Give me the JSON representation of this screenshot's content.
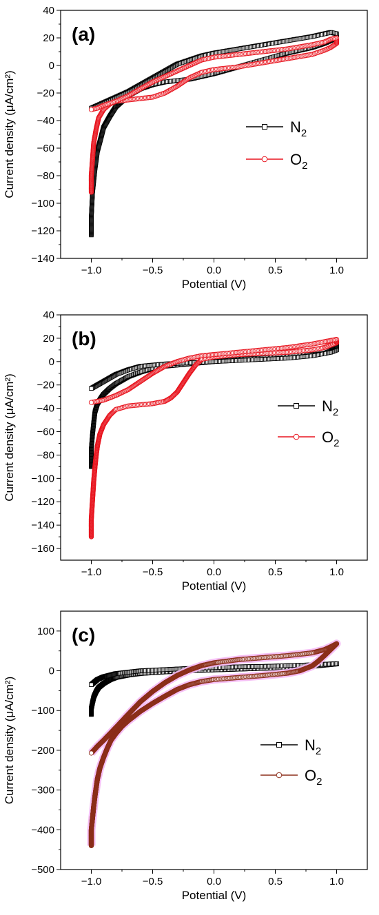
{
  "colors": {
    "n2": "#000000",
    "o2": "#e8141e",
    "o2_c": "#8b2e1a",
    "o2_c_halo": "#f4b8f4"
  },
  "chart_data": [
    {
      "type": "line",
      "panel_label": "(a)",
      "xlabel": "Potential (V)",
      "ylabel": "Current density (μA/cm²)",
      "xlim": [
        -1.25,
        1.25
      ],
      "ylim": [
        -140,
        40
      ],
      "xticks": [
        -1.0,
        -0.5,
        0.0,
        0.5,
        1.0
      ],
      "xtick_labels": [
        "−1.0",
        "−0.5",
        "0.0",
        "0.5",
        "1.0"
      ],
      "yticks": [
        -140,
        -120,
        -100,
        -80,
        -60,
        -40,
        -20,
        0,
        20,
        40
      ],
      "ytick_labels": [
        "−140",
        "−120",
        "−100",
        "−80",
        "−60",
        "−40",
        "−20",
        "0",
        "20",
        "40"
      ],
      "legend_position": "right-middle",
      "series": [
        {
          "name": "N",
          "name_sub": "2",
          "marker": "square",
          "color": "n2",
          "x": [
            -1.0,
            -1.0,
            -0.99,
            -0.97,
            -0.95,
            -0.92,
            -0.9,
            -0.85,
            -0.8,
            -0.7,
            -0.6,
            -0.5,
            -0.4,
            -0.3,
            -0.2,
            -0.1,
            0.0,
            0.2,
            0.4,
            0.6,
            0.8,
            0.9,
            0.95,
            1.0,
            1.0,
            0.95,
            0.9,
            0.8,
            0.6,
            0.4,
            0.2,
            0.0,
            -0.1,
            -0.2,
            -0.3,
            -0.4,
            -0.5,
            -0.6,
            -0.7,
            -0.8,
            -0.9,
            -0.95,
            -1.0
          ],
          "y": [
            -123,
            -110,
            -92,
            -75,
            -62,
            -52,
            -45,
            -37,
            -30,
            -22,
            -17,
            -14,
            -12,
            -11,
            -10,
            -8,
            -6,
            -1,
            4,
            9,
            13,
            16,
            18,
            20,
            23,
            24,
            23,
            21,
            18,
            15,
            12,
            9,
            7,
            4,
            1,
            -4,
            -9,
            -14,
            -19,
            -23,
            -27,
            -29,
            -31
          ]
        },
        {
          "name": "O",
          "name_sub": "2",
          "marker": "circle",
          "color": "o2",
          "x": [
            -1.0,
            -1.0,
            -0.99,
            -0.98,
            -0.96,
            -0.94,
            -0.9,
            -0.85,
            -0.8,
            -0.7,
            -0.6,
            -0.5,
            -0.4,
            -0.3,
            -0.2,
            -0.1,
            0.0,
            0.2,
            0.4,
            0.6,
            0.8,
            0.9,
            0.95,
            1.0,
            1.0,
            0.95,
            0.9,
            0.8,
            0.6,
            0.4,
            0.2,
            0.0,
            -0.1,
            -0.2,
            -0.3,
            -0.4,
            -0.5,
            -0.6,
            -0.7,
            -0.8,
            -0.9,
            -0.95,
            -1.0
          ],
          "y": [
            -92,
            -80,
            -68,
            -56,
            -46,
            -38,
            -32,
            -28,
            -26,
            -25,
            -24,
            -23,
            -20,
            -15,
            -9,
            -5,
            -3,
            -1,
            2,
            5,
            8,
            11,
            13,
            16,
            20,
            19,
            17,
            15,
            12,
            10,
            8,
            6,
            4,
            0,
            -4,
            -8,
            -12,
            -17,
            -22,
            -26,
            -29,
            -31,
            -32
          ]
        }
      ]
    },
    {
      "type": "line",
      "panel_label": "(b)",
      "xlabel": "Potential (V)",
      "ylabel": "Current density (μA/cm²)",
      "xlim": [
        -1.25,
        1.25
      ],
      "ylim": [
        -170,
        40
      ],
      "xticks": [
        -1.0,
        -0.5,
        0.0,
        0.5,
        1.0
      ],
      "xtick_labels": [
        "−1.0",
        "−0.5",
        "0.0",
        "0.5",
        "1.0"
      ],
      "yticks": [
        -160,
        -140,
        -120,
        -100,
        -80,
        -60,
        -40,
        -20,
        0,
        20,
        40
      ],
      "ytick_labels": [
        "−160",
        "−140",
        "−120",
        "−100",
        "−80",
        "−60",
        "−40",
        "−20",
        "0",
        "20",
        "40"
      ],
      "legend_position": "right-middle",
      "series": [
        {
          "name": "N",
          "name_sub": "2",
          "marker": "square",
          "color": "n2",
          "x": [
            -1.0,
            -1.0,
            -0.99,
            -0.98,
            -0.97,
            -0.95,
            -0.92,
            -0.9,
            -0.85,
            -0.8,
            -0.7,
            -0.6,
            -0.5,
            -0.4,
            -0.3,
            -0.2,
            -0.1,
            0.0,
            0.2,
            0.4,
            0.6,
            0.8,
            0.9,
            0.95,
            1.0,
            1.0,
            0.95,
            0.9,
            0.8,
            0.6,
            0.4,
            0.2,
            0.0,
            -0.2,
            -0.4,
            -0.6,
            -0.7,
            -0.8,
            -0.9,
            -0.95,
            -1.0
          ],
          "y": [
            -90,
            -75,
            -62,
            -52,
            -43,
            -36,
            -31,
            -28,
            -23,
            -19,
            -13,
            -9,
            -6,
            -4,
            -3,
            -2,
            -1,
            0,
            2,
            3,
            5,
            6,
            7,
            9,
            14,
            10,
            8,
            7,
            5,
            3,
            2,
            1,
            0,
            -1,
            -2,
            -4,
            -7,
            -11,
            -17,
            -20,
            -23
          ]
        },
        {
          "name": "O",
          "name_sub": "2",
          "marker": "circle",
          "color": "o2",
          "x": [
            -1.0,
            -1.0,
            -0.99,
            -0.98,
            -0.97,
            -0.96,
            -0.95,
            -0.93,
            -0.9,
            -0.85,
            -0.8,
            -0.7,
            -0.6,
            -0.5,
            -0.45,
            -0.4,
            -0.35,
            -0.3,
            -0.25,
            -0.2,
            -0.15,
            -0.1,
            0.0,
            0.2,
            0.4,
            0.6,
            0.8,
            0.9,
            0.95,
            1.0,
            1.0,
            0.95,
            0.9,
            0.8,
            0.6,
            0.4,
            0.2,
            0.0,
            -0.1,
            -0.2,
            -0.3,
            -0.4,
            -0.5,
            -0.6,
            -0.7,
            -0.8,
            -0.9,
            -0.95,
            -1.0
          ],
          "y": [
            -150,
            -135,
            -118,
            -102,
            -90,
            -80,
            -72,
            -62,
            -54,
            -46,
            -41,
            -38,
            -37,
            -36,
            -35,
            -34,
            -31,
            -26,
            -18,
            -10,
            -3,
            2,
            4,
            6,
            7,
            8,
            10,
            12,
            14,
            16,
            19,
            18,
            17,
            15,
            12,
            10,
            8,
            6,
            5,
            3,
            0,
            -4,
            -10,
            -17,
            -24,
            -29,
            -33,
            -34,
            -35
          ]
        }
      ]
    },
    {
      "type": "line",
      "panel_label": "(c)",
      "xlabel": "Potential (V)",
      "ylabel": "Current density (μA/cm²)",
      "xlim": [
        -1.25,
        1.25
      ],
      "ylim": [
        -500,
        150
      ],
      "xticks": [
        -1.0,
        -0.5,
        0.0,
        0.5,
        1.0
      ],
      "xtick_labels": [
        "−1.0",
        "−0.5",
        "0.0",
        "0.5",
        "1.0"
      ],
      "yticks": [
        -500,
        -400,
        -300,
        -200,
        -100,
        0,
        100
      ],
      "ytick_labels": [
        "−500",
        "−400",
        "−300",
        "−200",
        "−100",
        "0",
        "100"
      ],
      "legend_position": "right-lower",
      "series": [
        {
          "name": "N",
          "name_sub": "2",
          "marker": "square",
          "color": "n2",
          "x": [
            -1.0,
            -1.0,
            -0.99,
            -0.98,
            -0.96,
            -0.94,
            -0.9,
            -0.85,
            -0.8,
            -0.7,
            -0.6,
            -0.5,
            -0.4,
            -0.2,
            0.0,
            0.2,
            0.4,
            0.6,
            0.8,
            1.0,
            1.0,
            0.8,
            0.6,
            0.4,
            0.2,
            0.0,
            -0.2,
            -0.4,
            -0.6,
            -0.8,
            -0.9,
            -0.95,
            -1.0
          ],
          "y": [
            -110,
            -95,
            -80,
            -66,
            -52,
            -42,
            -32,
            -23,
            -17,
            -11,
            -7,
            -5,
            -3,
            0,
            2,
            4,
            6,
            8,
            11,
            17,
            18,
            15,
            13,
            11,
            10,
            8,
            6,
            3,
            0,
            -7,
            -15,
            -22,
            -35
          ]
        },
        {
          "name": "O",
          "name_sub": "2",
          "marker": "circle",
          "color": "o2_c",
          "x": [
            -1.0,
            -1.0,
            -0.99,
            -0.98,
            -0.97,
            -0.96,
            -0.95,
            -0.93,
            -0.9,
            -0.87,
            -0.84,
            -0.8,
            -0.75,
            -0.7,
            -0.6,
            -0.5,
            -0.4,
            -0.3,
            -0.2,
            -0.1,
            0.0,
            0.2,
            0.4,
            0.6,
            0.7,
            0.8,
            0.85,
            0.9,
            0.95,
            1.0,
            1.0,
            0.95,
            0.9,
            0.8,
            0.6,
            0.4,
            0.2,
            0.0,
            -0.1,
            -0.2,
            -0.3,
            -0.4,
            -0.5,
            -0.6,
            -0.7,
            -0.8,
            -0.9,
            -0.95,
            -1.0
          ],
          "y": [
            -440,
            -400,
            -370,
            -340,
            -315,
            -293,
            -272,
            -245,
            -218,
            -195,
            -175,
            -158,
            -140,
            -126,
            -102,
            -82,
            -64,
            -47,
            -35,
            -27,
            -22,
            -17,
            -12,
            -6,
            0,
            12,
            24,
            38,
            53,
            68,
            68,
            60,
            53,
            45,
            38,
            33,
            28,
            20,
            13,
            2,
            -12,
            -30,
            -52,
            -78,
            -110,
            -143,
            -175,
            -190,
            -207
          ]
        }
      ]
    }
  ]
}
